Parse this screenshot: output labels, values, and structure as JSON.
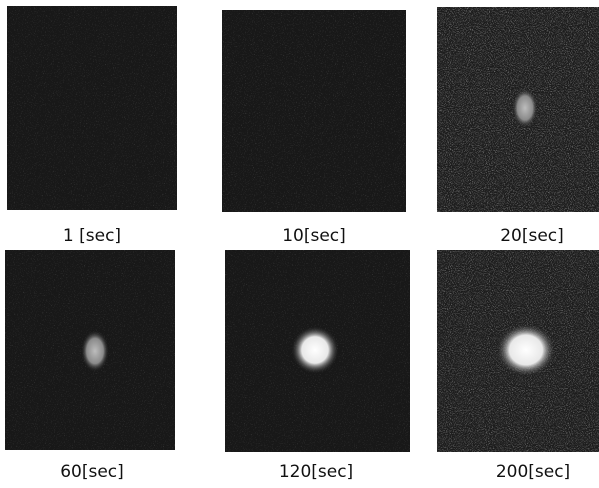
{
  "panels": [
    {
      "label": "1 [sec]"
    },
    {
      "label": "10[sec]"
    },
    {
      "label": "20[sec]"
    },
    {
      "label": "60[sec]"
    },
    {
      "label": "120[sec]"
    },
    {
      "label": "200[sec]"
    }
  ]
}
